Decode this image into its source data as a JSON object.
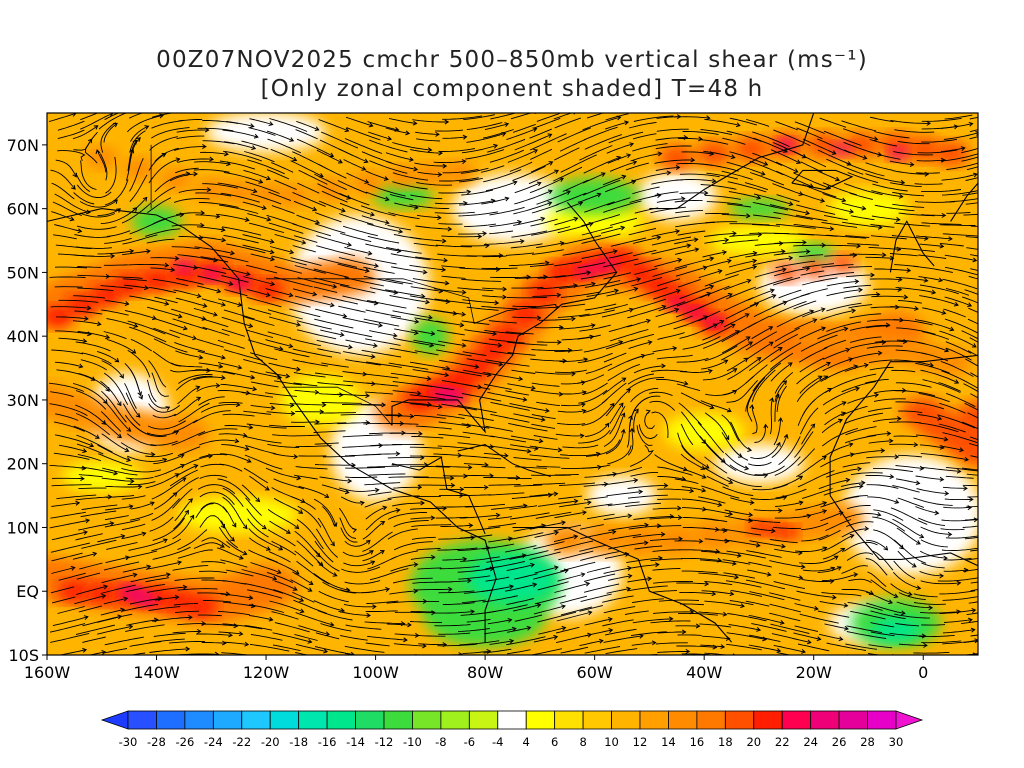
{
  "title": {
    "line1": "00Z07NOV2025 cmchr 500–850mb vertical shear (ms⁻¹)",
    "line2": "[Only zonal component shaded] T=48 h"
  },
  "map": {
    "lat_labels": [
      "70N",
      "60N",
      "50N",
      "40N",
      "30N",
      "20N",
      "10N",
      "EQ",
      "10S"
    ],
    "lon_labels": [
      "160W",
      "140W",
      "120W",
      "100W",
      "80W",
      "60W",
      "40W",
      "20W",
      "0"
    ],
    "lon_range": [
      -160,
      10
    ],
    "lat_range": [
      -10,
      75
    ]
  },
  "colorbar": {
    "labels": [
      "-30",
      "-28",
      "-26",
      "-24",
      "-22",
      "-20",
      "-18",
      "-16",
      "-14",
      "-12",
      "-10",
      "-8",
      "-6",
      "-4",
      "4",
      "6",
      "8",
      "10",
      "12",
      "14",
      "16",
      "18",
      "20",
      "22",
      "24",
      "26",
      "28",
      "30"
    ],
    "colors": [
      "#1e3cff",
      "#2850ff",
      "#1e6eff",
      "#1e8cff",
      "#1eaaff",
      "#1ec8ff",
      "#00dcdc",
      "#00e6af",
      "#00e68c",
      "#1edc64",
      "#3cdc3c",
      "#78e628",
      "#a0f01e",
      "#c8f514",
      "#ffffff",
      "#ffff00",
      "#ffe100",
      "#ffc800",
      "#ffb400",
      "#ffa000",
      "#ff8c00",
      "#ff7800",
      "#ff5000",
      "#ff1e00",
      "#ff0050",
      "#f00078",
      "#e6009b",
      "#e600c8",
      "#f014d2"
    ]
  }
}
